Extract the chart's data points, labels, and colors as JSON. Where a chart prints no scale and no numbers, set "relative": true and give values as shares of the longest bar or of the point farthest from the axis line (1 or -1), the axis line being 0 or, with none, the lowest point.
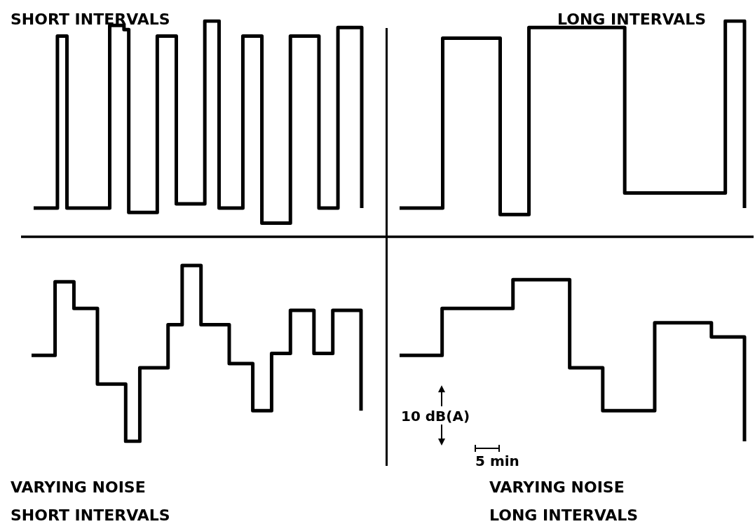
{
  "chart_data": [
    {
      "type": "step",
      "title": "SHORT INTERVALS",
      "relative": true,
      "grid": false,
      "marker": "none",
      "line_style": "solid",
      "categories": [
        null,
        null,
        null,
        null,
        null,
        null,
        null,
        null,
        null,
        null,
        null,
        null,
        null,
        null,
        null,
        null,
        null,
        null,
        null,
        null,
        null,
        null,
        null,
        null,
        null,
        null,
        null,
        null,
        null,
        null,
        null,
        null,
        null,
        null,
        null,
        null,
        null,
        null,
        null,
        null,
        null,
        null,
        null,
        null,
        null,
        null,
        null,
        null,
        null,
        null,
        null,
        null,
        null,
        null,
        null,
        null,
        null,
        null,
        null,
        null,
        null,
        null,
        null,
        null,
        null,
        null,
        null,
        null,
        null,
        null
      ],
      "series": [
        {
          "color": "#000000",
          "values": [
            0.13,
            0.13,
            0.13,
            0.13,
            0.13,
            0.93,
            0.93,
            0.13,
            0.13,
            0.13,
            0.13,
            0.13,
            0.13,
            0.13,
            0.13,
            0.13,
            0.98,
            0.98,
            0.98,
            0.96,
            0.11,
            0.11,
            0.11,
            0.11,
            0.11,
            0.11,
            0.93,
            0.93,
            0.93,
            0.93,
            0.15,
            0.15,
            0.15,
            0.15,
            0.15,
            0.15,
            1,
            1,
            1,
            0.13,
            0.13,
            0.13,
            0.13,
            0.13,
            0.93,
            0.93,
            0.93,
            0.93,
            0.06,
            0.06,
            0.06,
            0.06,
            0.06,
            0.06,
            0.93,
            0.93,
            0.93,
            0.93,
            0.93,
            0.93,
            0.13,
            0.13,
            0.13,
            0.13,
            0.97,
            0.97,
            0.97,
            0.97,
            0.97,
            0.13
          ]
        }
      ]
    },
    {
      "type": "step",
      "title": "LONG INTERVALS",
      "relative": true,
      "grid": false,
      "marker": "none",
      "line_style": "solid",
      "categories": [
        null,
        null,
        null,
        null,
        null,
        null,
        null,
        null,
        null,
        null,
        null,
        null,
        null,
        null,
        null,
        null,
        null,
        null,
        null,
        null,
        null,
        null,
        null,
        null,
        null,
        null,
        null,
        null,
        null,
        null,
        null,
        null,
        null,
        null,
        null,
        null,
        null,
        null,
        null,
        null,
        null,
        null,
        null,
        null,
        null,
        null,
        null,
        null,
        null,
        null,
        null,
        null,
        null,
        null,
        null,
        null,
        null,
        null,
        null,
        null,
        null,
        null,
        null,
        null,
        null,
        null,
        null,
        null,
        null,
        null,
        null,
        null,
        null
      ],
      "series": [
        {
          "color": "#000000",
          "values": [
            0.13,
            0.13,
            0.13,
            0.13,
            0.13,
            0.13,
            0.13,
            0.13,
            0.13,
            0.92,
            0.92,
            0.92,
            0.92,
            0.92,
            0.92,
            0.92,
            0.92,
            0.92,
            0.92,
            0.92,
            0.92,
            0.1,
            0.1,
            0.1,
            0.1,
            0.1,
            0.1,
            0.97,
            0.97,
            0.97,
            0.97,
            0.97,
            0.97,
            0.97,
            0.97,
            0.97,
            0.97,
            0.97,
            0.97,
            0.97,
            0.97,
            0.97,
            0.97,
            0.97,
            0.97,
            0.97,
            0.97,
            0.2,
            0.2,
            0.2,
            0.2,
            0.2,
            0.2,
            0.2,
            0.2,
            0.2,
            0.2,
            0.2,
            0.2,
            0.2,
            0.2,
            0.2,
            0.2,
            0.2,
            0.2,
            0.2,
            0.2,
            0.2,
            1,
            1,
            1,
            1,
            0.13
          ]
        }
      ]
    },
    {
      "type": "step",
      "title": "VARYING NOISE\nSHORT INTERVALS",
      "relative": true,
      "grid": false,
      "marker": "none",
      "line_style": "solid",
      "categories": [
        null,
        null,
        null,
        null,
        null,
        null,
        null,
        null,
        null,
        null,
        null,
        null,
        null,
        null,
        null,
        null,
        null,
        null,
        null,
        null,
        null,
        null,
        null,
        null,
        null,
        null,
        null,
        null,
        null,
        null,
        null,
        null,
        null,
        null,
        null,
        null,
        null,
        null,
        null,
        null,
        null,
        null,
        null,
        null,
        null,
        null,
        null,
        null,
        null,
        null,
        null,
        null,
        null,
        null,
        null,
        null,
        null,
        null,
        null,
        null,
        null,
        null,
        null,
        null,
        null,
        null,
        null,
        null,
        null,
        null,
        null
      ],
      "series": [
        {
          "color": "#000000",
          "values": [
            -0.58,
            -0.58,
            -0.58,
            -0.58,
            -0.58,
            -0.22,
            -0.22,
            -0.22,
            -0.22,
            -0.35,
            -0.35,
            -0.35,
            -0.35,
            -0.35,
            -0.72,
            -0.72,
            -0.72,
            -0.72,
            -0.72,
            -0.72,
            -1,
            -1,
            -1,
            -0.64,
            -0.64,
            -0.64,
            -0.64,
            -0.64,
            -0.64,
            -0.43,
            -0.43,
            -0.43,
            -0.14,
            -0.14,
            -0.14,
            -0.14,
            -0.43,
            -0.43,
            -0.43,
            -0.43,
            -0.43,
            -0.43,
            -0.62,
            -0.62,
            -0.62,
            -0.62,
            -0.62,
            -0.85,
            -0.85,
            -0.85,
            -0.85,
            -0.57,
            -0.57,
            -0.57,
            -0.57,
            -0.36,
            -0.36,
            -0.36,
            -0.36,
            -0.36,
            -0.57,
            -0.57,
            -0.57,
            -0.57,
            -0.36,
            -0.36,
            -0.36,
            -0.36,
            -0.36,
            -0.36,
            -0.85
          ]
        }
      ]
    },
    {
      "type": "step",
      "title": "VARYING NOISE\nLONG INTERVALS",
      "relative": true,
      "grid": false,
      "marker": "none",
      "line_style": "solid",
      "annotations": [
        "10 dB(A)",
        "5 min"
      ],
      "categories": [
        null,
        null,
        null,
        null,
        null,
        null,
        null,
        null,
        null,
        null,
        null,
        null,
        null,
        null,
        null,
        null,
        null,
        null,
        null,
        null,
        null,
        null,
        null,
        null,
        null,
        null,
        null,
        null,
        null,
        null,
        null,
        null,
        null,
        null,
        null,
        null,
        null,
        null,
        null,
        null,
        null,
        null,
        null,
        null,
        null,
        null,
        null,
        null,
        null,
        null,
        null,
        null,
        null,
        null,
        null,
        null,
        null,
        null,
        null,
        null,
        null,
        null,
        null,
        null,
        null,
        null,
        null,
        null,
        null,
        null,
        null,
        null,
        null,
        null
      ],
      "series": [
        {
          "color": "#000000",
          "values": [
            -0.58,
            -0.58,
            -0.58,
            -0.58,
            -0.58,
            -0.58,
            -0.58,
            -0.58,
            -0.58,
            -0.35,
            -0.35,
            -0.35,
            -0.35,
            -0.35,
            -0.35,
            -0.35,
            -0.35,
            -0.35,
            -0.35,
            -0.35,
            -0.35,
            -0.35,
            -0.35,
            -0.35,
            -0.21,
            -0.21,
            -0.21,
            -0.21,
            -0.21,
            -0.21,
            -0.21,
            -0.21,
            -0.21,
            -0.21,
            -0.21,
            -0.21,
            -0.64,
            -0.64,
            -0.64,
            -0.64,
            -0.64,
            -0.64,
            -0.64,
            -0.85,
            -0.85,
            -0.85,
            -0.85,
            -0.85,
            -0.85,
            -0.85,
            -0.85,
            -0.85,
            -0.85,
            -0.85,
            -0.42,
            -0.42,
            -0.42,
            -0.42,
            -0.42,
            -0.42,
            -0.42,
            -0.42,
            -0.42,
            -0.42,
            -0.42,
            -0.42,
            -0.49,
            -0.49,
            -0.49,
            -0.49,
            -0.49,
            -0.49,
            -0.49,
            -1
          ]
        }
      ]
    }
  ]
}
